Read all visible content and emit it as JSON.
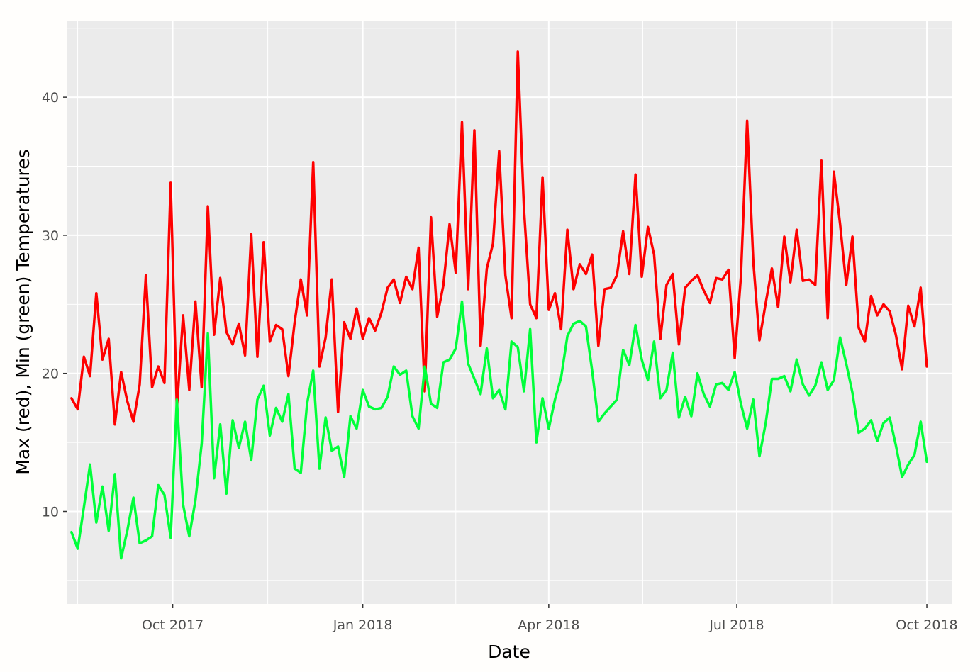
{
  "chart_data": {
    "type": "line",
    "title": "",
    "xlabel": "Date",
    "ylabel": "Max (red), Min (green) Temperatures",
    "xlim": [
      "2017-08-11",
      "2018-10-13"
    ],
    "ylim": [
      3.3,
      45.5
    ],
    "x_ticks": [
      {
        "date": "2017-10-01",
        "label": "Oct 2017"
      },
      {
        "date": "2018-01-01",
        "label": "Jan 2018"
      },
      {
        "date": "2018-04-01",
        "label": "Apr 2018"
      },
      {
        "date": "2018-07-01",
        "label": "Jul 2018"
      },
      {
        "date": "2018-10-01",
        "label": "Oct 2018"
      }
    ],
    "y_ticks": [
      10,
      20,
      30,
      40
    ],
    "grid": true,
    "background": "#ebebeb",
    "grid_color": "#ffffff",
    "series": [
      {
        "name": "Max",
        "color": "#ff0000",
        "x": [
          "2017-08-13",
          "2017-08-16",
          "2017-08-19",
          "2017-08-22",
          "2017-08-25",
          "2017-08-28",
          "2017-08-31",
          "2017-09-03",
          "2017-09-06",
          "2017-09-09",
          "2017-09-12",
          "2017-09-15",
          "2017-09-18",
          "2017-09-21",
          "2017-09-24",
          "2017-09-27",
          "2017-09-30",
          "2017-10-03",
          "2017-10-06",
          "2017-10-09",
          "2017-10-12",
          "2017-10-15",
          "2017-10-18",
          "2017-10-21",
          "2017-10-24",
          "2017-10-27",
          "2017-10-30",
          "2017-11-02",
          "2017-11-05",
          "2017-11-08",
          "2017-11-11",
          "2017-11-14",
          "2017-11-17",
          "2017-11-20",
          "2017-11-23",
          "2017-11-26",
          "2017-11-29",
          "2017-12-02",
          "2017-12-05",
          "2017-12-08",
          "2017-12-11",
          "2017-12-14",
          "2017-12-17",
          "2017-12-20",
          "2017-12-23",
          "2017-12-26",
          "2017-12-29",
          "2018-01-01",
          "2018-01-04",
          "2018-01-07",
          "2018-01-10",
          "2018-01-13",
          "2018-01-16",
          "2018-01-19",
          "2018-01-22",
          "2018-01-25",
          "2018-01-28",
          "2018-01-31",
          "2018-02-03",
          "2018-02-06",
          "2018-02-09",
          "2018-02-12",
          "2018-02-15",
          "2018-02-18",
          "2018-02-21",
          "2018-02-24",
          "2018-02-27",
          "2018-03-02",
          "2018-03-05",
          "2018-03-08",
          "2018-03-11",
          "2018-03-14",
          "2018-03-17",
          "2018-03-20",
          "2018-03-23",
          "2018-03-26",
          "2018-03-29",
          "2018-04-01",
          "2018-04-04",
          "2018-04-07",
          "2018-04-10",
          "2018-04-13",
          "2018-04-16",
          "2018-04-19",
          "2018-04-22",
          "2018-04-25",
          "2018-04-28",
          "2018-05-01",
          "2018-05-04",
          "2018-05-07",
          "2018-05-10",
          "2018-05-13",
          "2018-05-16",
          "2018-05-19",
          "2018-05-22",
          "2018-05-25",
          "2018-05-28",
          "2018-05-31",
          "2018-06-03",
          "2018-06-06",
          "2018-06-09",
          "2018-06-12",
          "2018-06-15",
          "2018-06-18",
          "2018-06-21",
          "2018-06-24",
          "2018-06-27",
          "2018-06-30",
          "2018-07-03",
          "2018-07-06",
          "2018-07-09",
          "2018-07-12",
          "2018-07-15",
          "2018-07-18",
          "2018-07-21",
          "2018-07-24",
          "2018-07-27",
          "2018-07-30",
          "2018-08-02",
          "2018-08-05",
          "2018-08-08",
          "2018-08-11",
          "2018-08-14",
          "2018-08-17",
          "2018-08-20",
          "2018-08-23",
          "2018-08-26",
          "2018-08-29",
          "2018-09-01",
          "2018-09-04",
          "2018-09-07",
          "2018-09-10",
          "2018-09-13",
          "2018-09-16",
          "2018-09-19",
          "2018-09-22",
          "2018-09-25",
          "2018-09-28",
          "2018-10-01"
        ],
        "values": [
          18.2,
          17.4,
          21.2,
          19.8,
          25.8,
          21.0,
          22.5,
          16.3,
          20.1,
          18.0,
          16.5,
          19.2,
          27.1,
          19.0,
          20.5,
          19.3,
          33.8,
          17.4,
          24.2,
          18.8,
          25.2,
          19.0,
          32.1,
          22.8,
          26.9,
          23.0,
          22.1,
          23.6,
          21.3,
          30.1,
          21.2,
          29.5,
          22.3,
          23.5,
          23.2,
          19.8,
          23.7,
          26.8,
          24.2,
          35.3,
          20.5,
          22.6,
          26.8,
          17.2,
          23.7,
          22.5,
          24.7,
          22.5,
          24.0,
          23.1,
          24.4,
          26.2,
          26.8,
          25.1,
          27.0,
          26.1,
          29.1,
          18.7,
          31.3,
          24.1,
          26.4,
          30.8,
          27.3,
          38.2,
          26.1,
          37.6,
          22.0,
          27.6,
          29.4,
          36.1,
          27.1,
          24.0,
          43.3,
          31.9,
          25.0,
          24.0,
          34.2,
          24.6,
          25.8,
          23.2,
          30.4,
          26.1,
          27.9,
          27.2,
          28.6,
          22.0,
          26.1,
          26.2,
          27.1,
          30.3,
          27.2,
          34.4,
          27.0,
          30.6,
          28.6,
          22.5,
          26.4,
          27.2,
          22.1,
          26.2,
          26.7,
          27.1,
          26.0,
          25.1,
          26.9,
          26.8,
          27.5,
          21.1,
          27.0,
          38.3,
          28.1,
          22.4,
          25.1,
          27.6,
          24.8,
          29.9,
          26.6,
          30.4,
          26.7,
          26.8,
          26.4,
          35.4,
          24.0,
          34.6,
          30.8,
          26.4,
          29.9,
          23.3,
          22.3,
          25.6,
          24.2,
          25.0,
          24.5,
          22.8,
          20.3,
          24.9,
          23.4,
          26.2,
          20.5
        ],
        "note": "dense daily series; values sampled every 3 days"
      },
      {
        "name": "Min",
        "color": "#00ff3a",
        "values_note": "sampled every 3 days, same dates as Max",
        "x": [
          "2017-08-13",
          "2017-08-16",
          "2017-08-19",
          "2017-08-22",
          "2017-08-25",
          "2017-08-28",
          "2017-08-31",
          "2017-09-03",
          "2017-09-06",
          "2017-09-09",
          "2017-09-12",
          "2017-09-15",
          "2017-09-18",
          "2017-09-21",
          "2017-09-24",
          "2017-09-27",
          "2017-09-30",
          "2017-10-03",
          "2017-10-06",
          "2017-10-09",
          "2017-10-12",
          "2017-10-15",
          "2017-10-18",
          "2017-10-21",
          "2017-10-24",
          "2017-10-27",
          "2017-10-30",
          "2017-11-02",
          "2017-11-05",
          "2017-11-08",
          "2017-11-11",
          "2017-11-14",
          "2017-11-17",
          "2017-11-20",
          "2017-11-23",
          "2017-11-26",
          "2017-11-29",
          "2017-12-02",
          "2017-12-05",
          "2017-12-08",
          "2017-12-11",
          "2017-12-14",
          "2017-12-17",
          "2017-12-20",
          "2017-12-23",
          "2017-12-26",
          "2017-12-29",
          "2018-01-01",
          "2018-01-04",
          "2018-01-07",
          "2018-01-10",
          "2018-01-13",
          "2018-01-16",
          "2018-01-19",
          "2018-01-22",
          "2018-01-25",
          "2018-01-28",
          "2018-01-31",
          "2018-02-03",
          "2018-02-06",
          "2018-02-09",
          "2018-02-12",
          "2018-02-15",
          "2018-02-18",
          "2018-02-21",
          "2018-02-24",
          "2018-02-27",
          "2018-03-02",
          "2018-03-05",
          "2018-03-08",
          "2018-03-11",
          "2018-03-14",
          "2018-03-17",
          "2018-03-20",
          "2018-03-23",
          "2018-03-26",
          "2018-03-29",
          "2018-04-01",
          "2018-04-04",
          "2018-04-07",
          "2018-04-10",
          "2018-04-13",
          "2018-04-16",
          "2018-04-19",
          "2018-04-22",
          "2018-04-25",
          "2018-04-28",
          "2018-05-01",
          "2018-05-04",
          "2018-05-07",
          "2018-05-10",
          "2018-05-13",
          "2018-05-16",
          "2018-05-19",
          "2018-05-22",
          "2018-05-25",
          "2018-05-28",
          "2018-05-31",
          "2018-06-03",
          "2018-06-06",
          "2018-06-09",
          "2018-06-12",
          "2018-06-15",
          "2018-06-18",
          "2018-06-21",
          "2018-06-24",
          "2018-06-27",
          "2018-06-30",
          "2018-07-03",
          "2018-07-06",
          "2018-07-09",
          "2018-07-12",
          "2018-07-15",
          "2018-07-18",
          "2018-07-21",
          "2018-07-24",
          "2018-07-27",
          "2018-07-30",
          "2018-08-02",
          "2018-08-05",
          "2018-08-08",
          "2018-08-11",
          "2018-08-14",
          "2018-08-17",
          "2018-08-20",
          "2018-08-23",
          "2018-08-26",
          "2018-08-29",
          "2018-09-01",
          "2018-09-04",
          "2018-09-07",
          "2018-09-10",
          "2018-09-13",
          "2018-09-16",
          "2018-09-19",
          "2018-09-22",
          "2018-09-25",
          "2018-09-28",
          "2018-10-01"
        ],
        "values": [
          8.5,
          7.3,
          10.3,
          13.4,
          9.2,
          11.8,
          8.6,
          12.7,
          6.6,
          8.6,
          11.0,
          7.7,
          7.9,
          8.2,
          11.9,
          11.2,
          8.1,
          18.1,
          10.5,
          8.2,
          10.8,
          14.9,
          22.9,
          12.4,
          16.3,
          11.3,
          16.6,
          14.6,
          16.5,
          13.7,
          18.1,
          19.1,
          15.5,
          17.5,
          16.5,
          18.5,
          13.1,
          12.8,
          17.8,
          20.2,
          13.1,
          16.8,
          14.4,
          14.7,
          12.5,
          16.9,
          16.0,
          18.8,
          17.6,
          17.4,
          17.5,
          18.3,
          20.5,
          19.9,
          20.2,
          16.9,
          16.0,
          20.5,
          17.8,
          17.5,
          20.8,
          21.0,
          21.8,
          25.2,
          20.7,
          19.6,
          18.5,
          21.8,
          18.2,
          18.8,
          17.4,
          22.3,
          21.9,
          18.7,
          23.2,
          15.0,
          18.2,
          16.0,
          18.1,
          19.7,
          22.7,
          23.6,
          23.8,
          23.4,
          20.2,
          16.5,
          17.1,
          17.6,
          18.1,
          21.7,
          20.6,
          23.5,
          21.0,
          19.5,
          22.3,
          18.2,
          18.8,
          21.5,
          16.8,
          18.3,
          16.9,
          20.0,
          18.5,
          17.6,
          19.2,
          19.3,
          18.8,
          20.1,
          17.8,
          16.0,
          18.1,
          14.0,
          16.4,
          19.6,
          19.6,
          19.8,
          18.7,
          21.0,
          19.2,
          18.4,
          19.1,
          20.8,
          18.8,
          19.5,
          22.6,
          20.7,
          18.6,
          15.7,
          16.0,
          16.6,
          15.1,
          16.4,
          16.8,
          14.8,
          12.5,
          13.4,
          14.1,
          16.5,
          13.6
        ]
      }
    ]
  }
}
